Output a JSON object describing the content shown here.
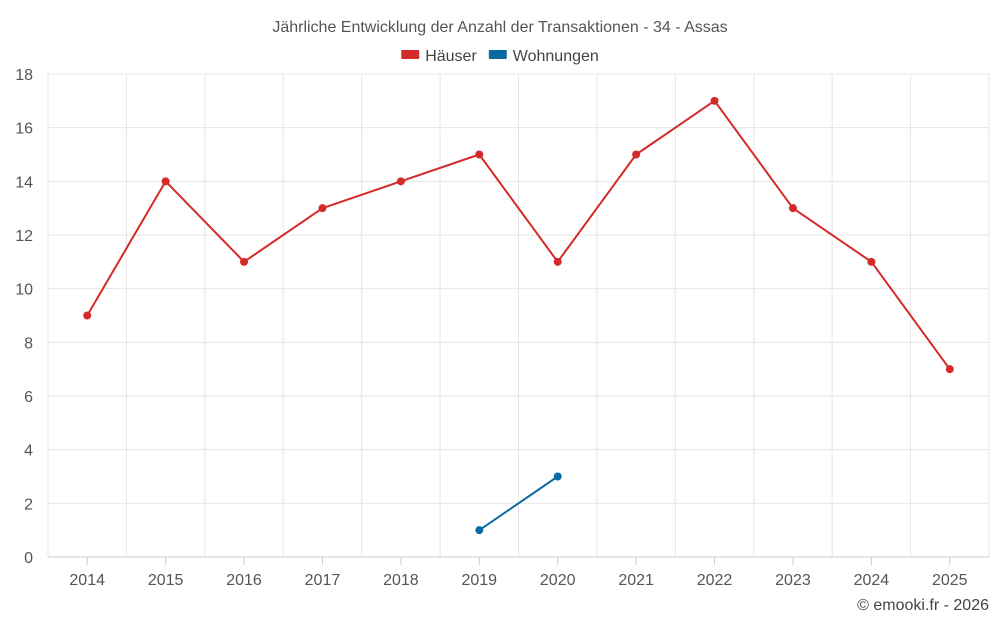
{
  "chart_data": {
    "type": "line",
    "title": "Jährliche Entwicklung der Anzahl der Transaktionen - 34 - Assas",
    "x": [
      "2014",
      "2015",
      "2016",
      "2017",
      "2018",
      "2019",
      "2020",
      "2021",
      "2022",
      "2023",
      "2024",
      "2025"
    ],
    "yticks": [
      "0",
      "2",
      "4",
      "6",
      "8",
      "10",
      "12",
      "14",
      "16",
      "18"
    ],
    "ylim": [
      0,
      18
    ],
    "grid": true,
    "legend": "top-center",
    "series": [
      {
        "name": "Häuser",
        "color": "#d42a2a",
        "values": [
          9,
          14,
          11,
          13,
          14,
          15,
          11,
          15,
          17,
          13,
          11,
          7
        ]
      },
      {
        "name": "Wohnungen",
        "color": "#0b6aa0",
        "values": [
          null,
          null,
          null,
          null,
          null,
          1,
          3,
          null,
          null,
          null,
          null,
          null
        ]
      }
    ]
  },
  "credit": "© emooki.fr - 2026"
}
